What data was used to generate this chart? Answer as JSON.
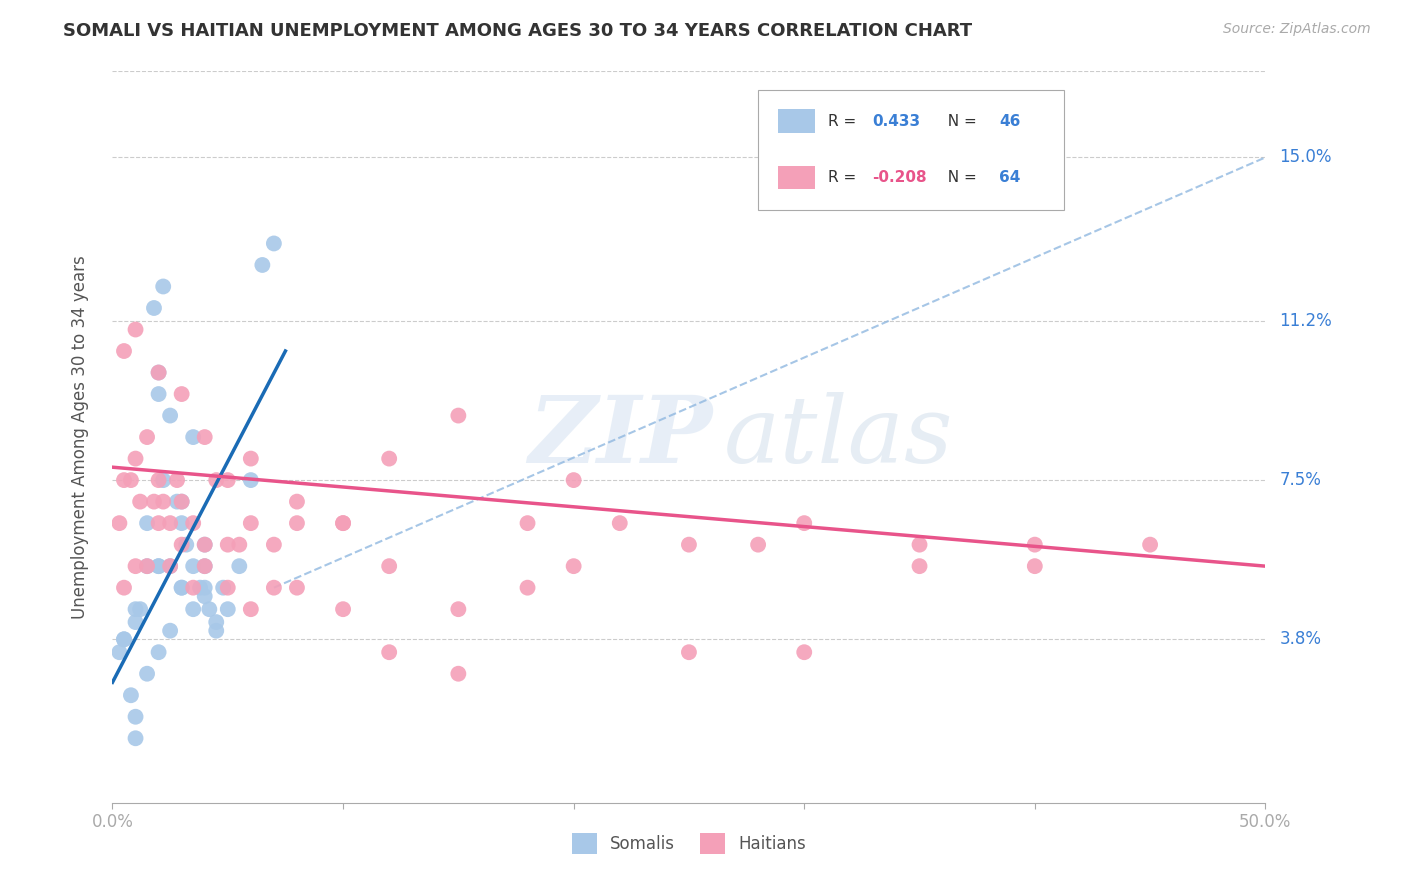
{
  "title": "SOMALI VS HAITIAN UNEMPLOYMENT AMONG AGES 30 TO 34 YEARS CORRELATION CHART",
  "source": "Source: ZipAtlas.com",
  "ylabel": "Unemployment Among Ages 30 to 34 years",
  "ytick_labels": [
    "3.8%",
    "7.5%",
    "11.2%",
    "15.0%"
  ],
  "ytick_values": [
    3.8,
    7.5,
    11.2,
    15.0
  ],
  "xlim": [
    0.0,
    50.0
  ],
  "ylim": [
    0.0,
    17.0
  ],
  "somali_R": 0.433,
  "somali_N": 46,
  "haitian_R": -0.208,
  "haitian_N": 64,
  "somali_color": "#a8c8e8",
  "haitian_color": "#f4a0b8",
  "somali_line_color": "#1a6bb5",
  "haitian_line_color": "#e8548a",
  "diagonal_color": "#90b8e0",
  "watermark_zip": "ZIP",
  "watermark_atlas": "atlas",
  "background_color": "#ffffff",
  "legend_r1_label": "R = ",
  "legend_r1_val": "0.433",
  "legend_n1_label": "N = ",
  "legend_n1_val": "46",
  "legend_r2_label": "R = ",
  "legend_r2_val": "-0.208",
  "legend_n2_label": "N = ",
  "legend_n2_val": "64",
  "val_color": "#3a7fd5",
  "neg_val_color": "#e8548a",
  "somali_x": [
    1.0,
    1.5,
    2.0,
    2.0,
    2.2,
    2.5,
    2.8,
    3.0,
    3.2,
    3.5,
    3.8,
    4.0,
    4.0,
    4.2,
    4.5,
    4.8,
    5.0,
    5.5,
    6.0,
    6.5,
    7.0,
    0.3,
    0.5,
    0.8,
    1.0,
    1.2,
    1.5,
    2.0,
    2.5,
    3.0,
    3.5,
    4.0,
    4.5,
    1.8,
    2.2,
    3.0,
    3.5,
    1.0,
    1.5,
    2.0,
    2.5,
    3.0,
    4.0,
    0.5,
    1.0,
    2.0
  ],
  "somali_y": [
    4.5,
    6.5,
    9.5,
    10.0,
    7.5,
    9.0,
    7.0,
    6.5,
    6.0,
    5.5,
    5.0,
    5.5,
    6.0,
    4.5,
    4.0,
    5.0,
    4.5,
    5.5,
    7.5,
    12.5,
    13.0,
    3.5,
    3.8,
    2.5,
    2.0,
    4.5,
    5.5,
    5.5,
    5.5,
    5.0,
    4.5,
    4.8,
    4.2,
    11.5,
    12.0,
    7.0,
    8.5,
    1.5,
    3.0,
    5.5,
    4.0,
    5.0,
    5.0,
    3.8,
    4.2,
    3.5
  ],
  "haitian_x": [
    0.5,
    1.0,
    1.2,
    1.5,
    1.8,
    2.0,
    2.2,
    2.5,
    2.8,
    3.0,
    3.5,
    4.0,
    4.5,
    5.0,
    5.5,
    6.0,
    7.0,
    8.0,
    10.0,
    12.0,
    15.0,
    18.0,
    20.0,
    22.0,
    25.0,
    28.0,
    30.0,
    35.0,
    40.0,
    0.3,
    0.5,
    0.8,
    1.0,
    1.5,
    2.0,
    2.5,
    3.0,
    3.5,
    4.0,
    5.0,
    6.0,
    7.0,
    8.0,
    10.0,
    12.0,
    15.0,
    18.0,
    20.0,
    25.0,
    30.0,
    35.0,
    40.0,
    45.0,
    0.5,
    1.0,
    2.0,
    3.0,
    4.0,
    5.0,
    6.0,
    8.0,
    10.0,
    12.0,
    15.0
  ],
  "haitian_y": [
    7.5,
    8.0,
    7.0,
    8.5,
    7.0,
    7.5,
    7.0,
    6.5,
    7.5,
    7.0,
    6.5,
    6.0,
    7.5,
    6.0,
    6.0,
    6.5,
    6.0,
    6.5,
    6.5,
    8.0,
    9.0,
    6.5,
    7.5,
    6.5,
    6.0,
    6.0,
    6.5,
    5.5,
    6.0,
    6.5,
    5.0,
    7.5,
    5.5,
    5.5,
    6.5,
    5.5,
    6.0,
    5.0,
    5.5,
    5.0,
    4.5,
    5.0,
    5.0,
    4.5,
    5.5,
    4.5,
    5.0,
    5.5,
    3.5,
    3.5,
    6.0,
    5.5,
    6.0,
    10.5,
    11.0,
    10.0,
    9.5,
    8.5,
    7.5,
    8.0,
    7.0,
    6.5,
    3.5,
    3.0
  ],
  "somali_line_x": [
    0.0,
    7.5
  ],
  "somali_line_y": [
    2.8,
    10.5
  ],
  "haitian_line_x": [
    0.0,
    50.0
  ],
  "haitian_line_y": [
    7.8,
    5.5
  ],
  "diag_line_x": [
    7.0,
    50.0
  ],
  "diag_line_y": [
    5.0,
    15.0
  ]
}
